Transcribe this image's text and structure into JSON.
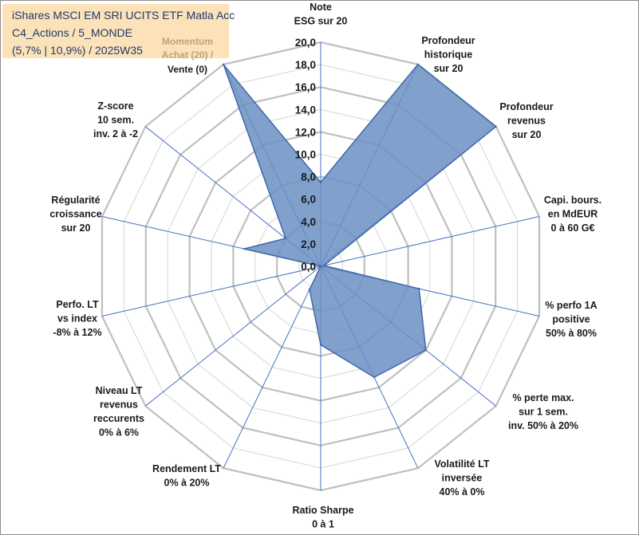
{
  "title": {
    "lines": [
      "iShares MSCI EM SRI UCITS ETF Matla Acc",
      "C4_Actions / 5_MONDE",
      "(5,7% | 10,9%) / 2025W35"
    ]
  },
  "chart_data": {
    "type": "radar",
    "rmin": 0,
    "rmax": 20,
    "tick_step": 2,
    "tick_labels": [
      "0,0",
      "2,0",
      "4,0",
      "6,0",
      "8,0",
      "10,0",
      "12,0",
      "14,0",
      "16,0",
      "18,0",
      "20,0"
    ],
    "grid": true,
    "colors": {
      "fill": "#6b8fc3",
      "stroke": "#3f68a8",
      "grid": "#c8c8c8",
      "spoke": "#4472c4"
    },
    "axes": [
      {
        "lines": [
          "Note",
          "ESG sur 20"
        ],
        "value": 7.5
      },
      {
        "lines": [
          "Profondeur",
          "historique",
          "sur 20"
        ],
        "value": 20
      },
      {
        "lines": [
          "Profondeur",
          "revenus",
          "sur 20"
        ],
        "value": 20
      },
      {
        "lines": [
          "Capi. bours.",
          "en MdEUR",
          "0 à 60 G€"
        ],
        "value": 0.3
      },
      {
        "lines": [
          "% perfo 1A",
          "positive",
          "50% à 80%"
        ],
        "value": 9
      },
      {
        "lines": [
          "% perte max.",
          "sur 1 sem.",
          "inv. 50% à 20%"
        ],
        "value": 12
      },
      {
        "lines": [
          "Volatilité LT",
          "inversée",
          "40% à 0%"
        ],
        "value": 11
      },
      {
        "lines": [
          "Ratio Sharpe",
          "0 à 1"
        ],
        "value": 7
      },
      {
        "lines": [
          "Rendement LT",
          "0% à 20%"
        ],
        "value": 2.3
      },
      {
        "lines": [
          "Niveau LT",
          "revenus",
          "reccurents",
          "0% à 6%"
        ],
        "value": 0
      },
      {
        "lines": [
          "Perfo. LT",
          "vs index",
          "-8% à 12%"
        ],
        "value": 0
      },
      {
        "lines": [
          "Régularité",
          "croissance",
          "sur 20"
        ],
        "value": 7
      },
      {
        "lines": [
          "Z-score",
          "10 sem.",
          "inv. 2 à -2"
        ],
        "value": 4
      },
      {
        "lines": [
          "Momentum",
          "Achat (20) /",
          "Vente (0)"
        ],
        "value": 20
      }
    ]
  }
}
